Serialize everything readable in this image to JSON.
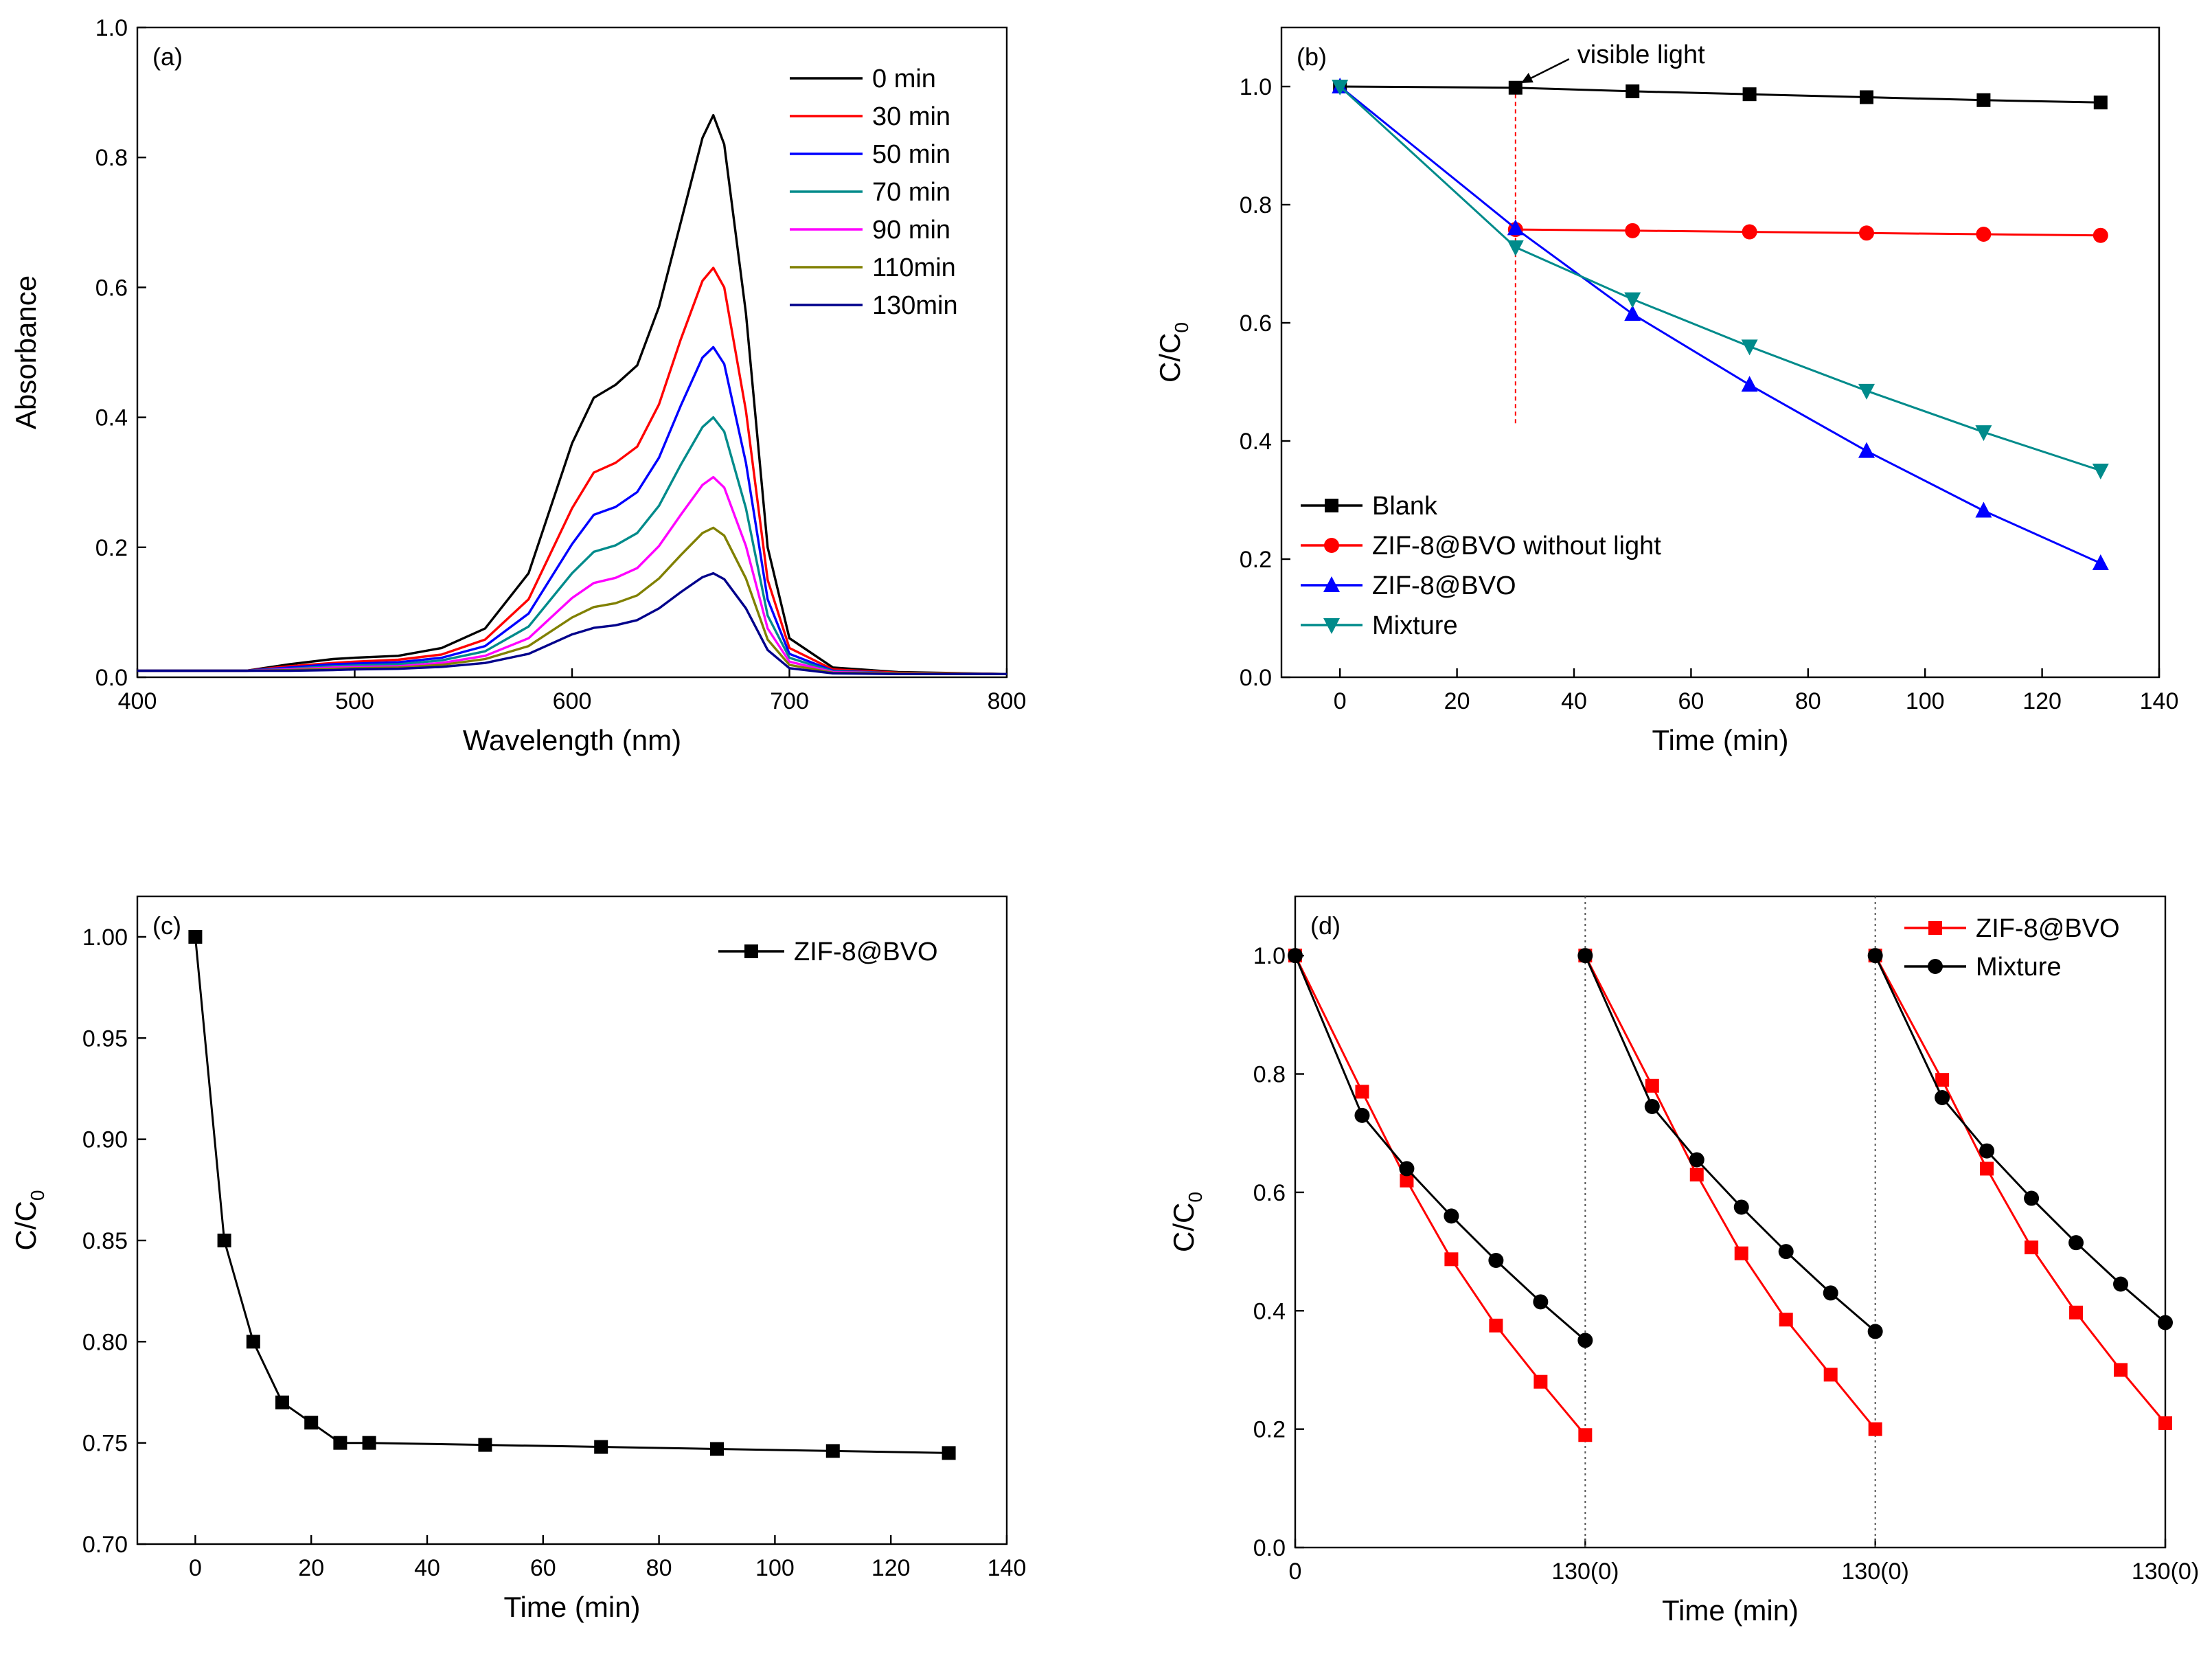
{
  "chart_data": [
    {
      "id": "a",
      "type": "line",
      "panel_label": "(a)",
      "xlabel": "Wavelength (nm)",
      "ylabel": "Absorbance",
      "xlim": [
        400,
        800
      ],
      "ylim": [
        0.0,
        1.0
      ],
      "xticks": [
        400,
        500,
        600,
        700,
        800
      ],
      "yticks": [
        0.0,
        0.2,
        0.4,
        0.6,
        0.8,
        1.0
      ],
      "xtick_labels": [
        "400",
        "500",
        "600",
        "700",
        "800"
      ],
      "ytick_labels": [
        "0.0",
        "0.2",
        "0.4",
        "0.6",
        "0.8",
        "1.0"
      ],
      "legend_position": "top-right",
      "note": "Absorption spectra; each series sampled at the listed wavelengths",
      "x": [
        400,
        450,
        470,
        490,
        500,
        520,
        540,
        560,
        580,
        600,
        610,
        620,
        630,
        640,
        650,
        660,
        665,
        670,
        680,
        690,
        700,
        720,
        750,
        800
      ],
      "series": [
        {
          "name": "0  min",
          "color": "#000000",
          "values": [
            0.01,
            0.01,
            0.02,
            0.028,
            0.03,
            0.033,
            0.045,
            0.075,
            0.16,
            0.36,
            0.43,
            0.45,
            0.48,
            0.57,
            0.7,
            0.83,
            0.865,
            0.82,
            0.56,
            0.2,
            0.06,
            0.015,
            0.008,
            0.005
          ]
        },
        {
          "name": "30 min",
          "color": "#ff0000",
          "values": [
            0.01,
            0.01,
            0.017,
            0.022,
            0.024,
            0.027,
            0.035,
            0.058,
            0.12,
            0.26,
            0.315,
            0.33,
            0.355,
            0.42,
            0.52,
            0.61,
            0.63,
            0.6,
            0.41,
            0.15,
            0.045,
            0.012,
            0.007,
            0.005
          ]
        },
        {
          "name": "50 min",
          "color": "#0000ff",
          "values": [
            0.01,
            0.01,
            0.015,
            0.02,
            0.021,
            0.023,
            0.03,
            0.048,
            0.098,
            0.205,
            0.25,
            0.262,
            0.285,
            0.338,
            0.418,
            0.492,
            0.508,
            0.482,
            0.33,
            0.12,
            0.036,
            0.01,
            0.006,
            0.005
          ]
        },
        {
          "name": "70 min",
          "color": "#008b8b",
          "values": [
            0.01,
            0.01,
            0.013,
            0.017,
            0.018,
            0.02,
            0.026,
            0.04,
            0.078,
            0.16,
            0.193,
            0.203,
            0.222,
            0.264,
            0.327,
            0.385,
            0.4,
            0.378,
            0.26,
            0.095,
            0.03,
            0.009,
            0.006,
            0.005
          ]
        },
        {
          "name": "90 min",
          "color": "#ff00ff",
          "values": [
            0.01,
            0.01,
            0.012,
            0.015,
            0.016,
            0.017,
            0.022,
            0.033,
            0.06,
            0.122,
            0.145,
            0.153,
            0.168,
            0.202,
            0.25,
            0.296,
            0.308,
            0.292,
            0.202,
            0.075,
            0.024,
            0.008,
            0.006,
            0.005
          ]
        },
        {
          "name": "110min",
          "color": "#808000",
          "values": [
            0.01,
            0.01,
            0.011,
            0.013,
            0.014,
            0.015,
            0.019,
            0.028,
            0.048,
            0.092,
            0.108,
            0.114,
            0.126,
            0.152,
            0.188,
            0.222,
            0.23,
            0.218,
            0.152,
            0.058,
            0.019,
            0.007,
            0.006,
            0.005
          ]
        },
        {
          "name": "130min",
          "color": "#00008b",
          "values": [
            0.01,
            0.01,
            0.01,
            0.011,
            0.012,
            0.013,
            0.016,
            0.022,
            0.036,
            0.066,
            0.076,
            0.08,
            0.088,
            0.106,
            0.131,
            0.154,
            0.16,
            0.151,
            0.106,
            0.042,
            0.014,
            0.006,
            0.005,
            0.005
          ]
        }
      ]
    },
    {
      "id": "b",
      "type": "line",
      "panel_label": "(b)",
      "xlabel": "Time (min)",
      "ylabel_main": "C/C",
      "ylabel_sub": "0",
      "xlim": [
        -10,
        140
      ],
      "ylim": [
        0.0,
        1.1
      ],
      "xticks": [
        0,
        20,
        40,
        60,
        80,
        100,
        120,
        140
      ],
      "yticks": [
        0.0,
        0.2,
        0.4,
        0.6,
        0.8,
        1.0
      ],
      "xtick_labels": [
        "0",
        "20",
        "40",
        "60",
        "80",
        "100",
        "120",
        "140"
      ],
      "ytick_labels": [
        "0.0",
        "0.2",
        "0.4",
        "0.6",
        "0.8",
        "1.0"
      ],
      "legend_position": "bottom-left",
      "annotation": {
        "text": "visible light",
        "x": 30,
        "y_line_from": 0.43,
        "y_line_to": 1.0
      },
      "series": [
        {
          "name": "Blank",
          "color": "#000000",
          "marker": "square",
          "x": [
            0,
            30,
            50,
            70,
            90,
            110,
            130
          ],
          "values": [
            1.0,
            0.998,
            0.992,
            0.987,
            0.982,
            0.977,
            0.973
          ]
        },
        {
          "name": "ZIF-8@BVO without light",
          "color": "#ff0000",
          "marker": "circle",
          "x": [
            30,
            50,
            70,
            90,
            110,
            130
          ],
          "values": [
            0.758,
            0.756,
            0.754,
            0.752,
            0.75,
            0.748
          ]
        },
        {
          "name": "ZIF-8@BVO",
          "color": "#0000ff",
          "marker": "triangle-up",
          "x": [
            0,
            30,
            50,
            70,
            90,
            110,
            130
          ],
          "values": [
            1.0,
            0.76,
            0.615,
            0.495,
            0.383,
            0.282,
            0.193
          ]
        },
        {
          "name": "Mixture",
          "color": "#008b8b",
          "marker": "triangle-down",
          "x": [
            0,
            30,
            50,
            70,
            90,
            110,
            130
          ],
          "values": [
            1.0,
            0.728,
            0.64,
            0.56,
            0.485,
            0.415,
            0.35
          ]
        }
      ]
    },
    {
      "id": "c",
      "type": "line",
      "panel_label": "(c)",
      "xlabel": "Time (min)",
      "ylabel_main": "C/C",
      "ylabel_sub": "0",
      "xlim": [
        -10,
        140
      ],
      "ylim": [
        0.7,
        1.02
      ],
      "xticks": [
        0,
        20,
        40,
        60,
        80,
        100,
        120,
        140
      ],
      "yticks": [
        0.7,
        0.75,
        0.8,
        0.85,
        0.9,
        0.95,
        1.0
      ],
      "xtick_labels": [
        "0",
        "20",
        "40",
        "60",
        "80",
        "100",
        "120",
        "140"
      ],
      "ytick_labels": [
        "0.70",
        "0.75",
        "0.80",
        "0.85",
        "0.90",
        "0.95",
        "1.00"
      ],
      "legend_position": "top-right",
      "series": [
        {
          "name": "ZIF-8@BVO",
          "color": "#000000",
          "marker": "square",
          "x": [
            0,
            5,
            10,
            15,
            20,
            25,
            30,
            50,
            70,
            90,
            110,
            130
          ],
          "values": [
            1.0,
            0.85,
            0.8,
            0.77,
            0.76,
            0.75,
            0.75,
            0.749,
            0.748,
            0.747,
            0.746,
            0.745
          ]
        }
      ]
    },
    {
      "id": "d",
      "type": "line",
      "panel_label": "(d)",
      "xlabel": "Time (min)",
      "ylabel_main": "C/C",
      "ylabel_sub": "0",
      "xlim": [
        0,
        390
      ],
      "ylim": [
        0.0,
        1.1
      ],
      "xticks": [
        0,
        130,
        260,
        390
      ],
      "yticks": [
        0.0,
        0.2,
        0.4,
        0.6,
        0.8,
        1.0
      ],
      "xtick_labels": [
        "0",
        "130(0)",
        "130(0)",
        "130(0)"
      ],
      "ytick_labels": [
        "0.0",
        "0.2",
        "0.4",
        "0.6",
        "0.8",
        "1.0"
      ],
      "cycle_dividers": [
        130,
        260
      ],
      "legend_position": "top-right",
      "series": [
        {
          "name": "ZIF-8@BVO",
          "color": "#ff0000",
          "marker": "square",
          "x": [
            0,
            30,
            50,
            70,
            90,
            110,
            130,
            130,
            160,
            180,
            200,
            220,
            240,
            260,
            260,
            290,
            310,
            330,
            350,
            370,
            390
          ],
          "values": [
            1.0,
            0.77,
            0.62,
            0.487,
            0.375,
            0.28,
            0.19,
            1.0,
            0.78,
            0.63,
            0.497,
            0.385,
            0.292,
            0.2,
            1.0,
            0.79,
            0.64,
            0.507,
            0.397,
            0.3,
            0.21
          ],
          "segments": [
            [
              0,
              6
            ],
            [
              7,
              13
            ],
            [
              14,
              20
            ]
          ]
        },
        {
          "name": "Mixture",
          "color": "#000000",
          "marker": "circle",
          "x": [
            0,
            30,
            50,
            70,
            90,
            110,
            130,
            130,
            160,
            180,
            200,
            220,
            240,
            260,
            260,
            290,
            310,
            330,
            350,
            370,
            390
          ],
          "values": [
            1.0,
            0.73,
            0.64,
            0.56,
            0.485,
            0.415,
            0.35,
            1.0,
            0.745,
            0.655,
            0.575,
            0.5,
            0.43,
            0.365,
            1.0,
            0.76,
            0.67,
            0.59,
            0.515,
            0.445,
            0.38
          ],
          "segments": [
            [
              0,
              6
            ],
            [
              7,
              13
            ],
            [
              14,
              20
            ]
          ]
        }
      ]
    }
  ]
}
